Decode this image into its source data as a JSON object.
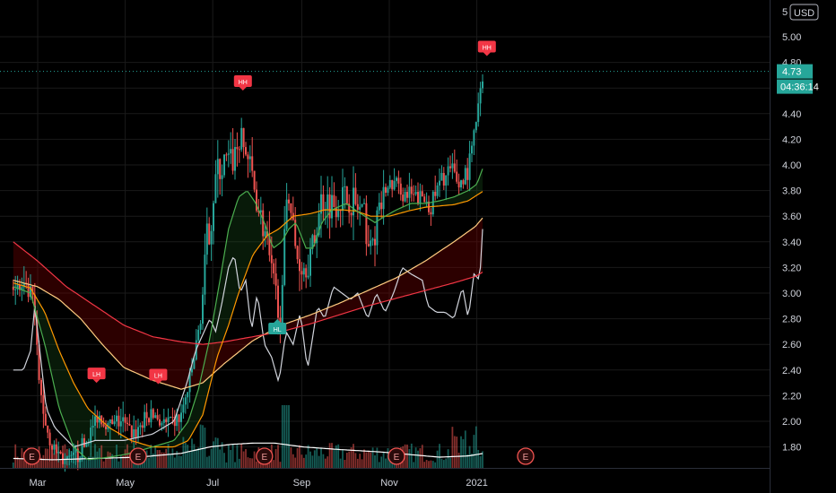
{
  "currency": "USD",
  "colors": {
    "background": "#000000",
    "up": "#26a69a",
    "down": "#ef5350",
    "ma_fast": "#4caf50",
    "ma_mid": "#ff9800",
    "ma_slow": "#f23645",
    "oscillator": "#d1d4dc",
    "volume_ma": "#ffffff"
  },
  "price_badge": {
    "value": "4.73",
    "countdown": "04:36:14"
  },
  "chart_data": {
    "type": "candlestick",
    "ylim": [
      1.62,
      5.13
    ],
    "y_ticks": [
      "1.80",
      "2.00",
      "2.20",
      "2.40",
      "2.60",
      "2.80",
      "3.00",
      "3.20",
      "3.40",
      "3.60",
      "3.80",
      "4.00",
      "4.20",
      "4.40",
      "4.60",
      "4.80",
      "5.00"
    ],
    "y_top_clipped_label": "5",
    "x_ticks": [
      {
        "label": "Mar",
        "day": 0
      },
      {
        "label": "May",
        "day": 61
      },
      {
        "label": "Jul",
        "day": 122
      },
      {
        "label": "Sep",
        "day": 184
      },
      {
        "label": "Nov",
        "day": 245
      },
      {
        "label": "2021",
        "day": 306
      }
    ],
    "x_range_days": [
      -17,
      330
    ],
    "last_price": 4.73,
    "price_anchors": [
      [
        -17,
        3.05
      ],
      [
        -8,
        3.0
      ],
      [
        -3,
        2.95
      ],
      [
        1,
        2.3
      ],
      [
        6,
        1.95
      ],
      [
        12,
        1.78
      ],
      [
        20,
        1.68
      ],
      [
        28,
        1.72
      ],
      [
        35,
        1.85
      ],
      [
        42,
        2.05
      ],
      [
        50,
        1.95
      ],
      [
        58,
        2.0
      ],
      [
        66,
        1.9
      ],
      [
        74,
        2.0
      ],
      [
        82,
        2.05
      ],
      [
        90,
        1.95
      ],
      [
        100,
        2.05
      ],
      [
        106,
        2.3
      ],
      [
        110,
        2.55
      ],
      [
        114,
        2.85
      ],
      [
        118,
        3.4
      ],
      [
        121,
        3.6
      ],
      [
        124,
        3.9
      ],
      [
        130,
        4.0
      ],
      [
        136,
        4.05
      ],
      [
        141,
        4.2
      ],
      [
        147,
        4.05
      ],
      [
        153,
        3.7
      ],
      [
        158,
        3.5
      ],
      [
        163,
        3.1
      ],
      [
        170,
        2.85
      ],
      [
        174,
        3.9
      ],
      [
        180,
        3.3
      ],
      [
        186,
        3.2
      ],
      [
        192,
        3.35
      ],
      [
        198,
        3.75
      ],
      [
        205,
        3.7
      ],
      [
        212,
        3.75
      ],
      [
        220,
        3.7
      ],
      [
        227,
        3.6
      ],
      [
        232,
        3.3
      ],
      [
        236,
        3.55
      ],
      [
        242,
        3.8
      ],
      [
        249,
        3.85
      ],
      [
        257,
        3.75
      ],
      [
        266,
        3.75
      ],
      [
        274,
        3.7
      ],
      [
        282,
        3.9
      ],
      [
        288,
        3.95
      ],
      [
        294,
        3.85
      ],
      [
        300,
        3.95
      ],
      [
        305,
        4.3
      ],
      [
        311,
        4.73
      ]
    ],
    "oscillator_anchors": [
      [
        -17,
        2.4
      ],
      [
        -10,
        2.4
      ],
      [
        -5,
        2.55
      ],
      [
        -2,
        2.9
      ],
      [
        2,
        2.5
      ],
      [
        6,
        2.1
      ],
      [
        12,
        1.95
      ],
      [
        25,
        1.8
      ],
      [
        40,
        1.85
      ],
      [
        60,
        1.85
      ],
      [
        80,
        1.9
      ],
      [
        95,
        2.0
      ],
      [
        104,
        2.3
      ],
      [
        110,
        2.55
      ],
      [
        116,
        2.7
      ],
      [
        120,
        2.8
      ],
      [
        124,
        2.7
      ],
      [
        128,
        2.9
      ],
      [
        133,
        3.2
      ],
      [
        137,
        3.3
      ],
      [
        141,
        3.0
      ],
      [
        145,
        3.1
      ],
      [
        149,
        2.7
      ],
      [
        153,
        3.0
      ],
      [
        158,
        2.6
      ],
      [
        163,
        2.5
      ],
      [
        168,
        2.3
      ],
      [
        173,
        2.7
      ],
      [
        178,
        2.6
      ],
      [
        183,
        2.85
      ],
      [
        188,
        2.4
      ],
      [
        195,
        2.9
      ],
      [
        200,
        2.8
      ],
      [
        206,
        3.05
      ],
      [
        212,
        3.0
      ],
      [
        218,
        2.95
      ],
      [
        223,
        3.0
      ],
      [
        230,
        2.8
      ],
      [
        236,
        3.0
      ],
      [
        242,
        2.85
      ],
      [
        248,
        3.0
      ],
      [
        254,
        3.2
      ],
      [
        260,
        3.15
      ],
      [
        268,
        3.1
      ],
      [
        272,
        2.9
      ],
      [
        278,
        2.85
      ],
      [
        284,
        2.85
      ],
      [
        290,
        2.8
      ],
      [
        296,
        3.05
      ],
      [
        300,
        2.8
      ],
      [
        304,
        3.15
      ],
      [
        308,
        3.1
      ],
      [
        311,
        3.7
      ]
    ],
    "series": [
      {
        "name": "",
        "kind": "ma_fast",
        "anchors": [
          [
            -17,
            3.05
          ],
          [
            -5,
            3.0
          ],
          [
            5,
            2.6
          ],
          [
            15,
            2.1
          ],
          [
            25,
            1.8
          ],
          [
            35,
            1.7
          ],
          [
            50,
            1.72
          ],
          [
            65,
            1.75
          ],
          [
            80,
            1.8
          ],
          [
            95,
            1.85
          ],
          [
            105,
            2.0
          ],
          [
            112,
            2.25
          ],
          [
            120,
            2.65
          ],
          [
            127,
            3.1
          ],
          [
            133,
            3.5
          ],
          [
            140,
            3.75
          ],
          [
            146,
            3.8
          ],
          [
            152,
            3.7
          ],
          [
            158,
            3.55
          ],
          [
            164,
            3.35
          ],
          [
            170,
            3.4
          ],
          [
            175,
            3.5
          ],
          [
            180,
            3.55
          ],
          [
            187,
            3.35
          ],
          [
            192,
            3.35
          ],
          [
            198,
            3.55
          ],
          [
            205,
            3.65
          ],
          [
            215,
            3.7
          ],
          [
            225,
            3.62
          ],
          [
            235,
            3.55
          ],
          [
            242,
            3.6
          ],
          [
            250,
            3.65
          ],
          [
            260,
            3.7
          ],
          [
            270,
            3.7
          ],
          [
            280,
            3.72
          ],
          [
            290,
            3.75
          ],
          [
            300,
            3.8
          ],
          [
            306,
            3.85
          ],
          [
            311,
            4.0
          ]
        ]
      },
      {
        "name": "",
        "kind": "ma_mid",
        "anchors": [
          [
            -17,
            3.08
          ],
          [
            -5,
            3.04
          ],
          [
            5,
            2.85
          ],
          [
            15,
            2.55
          ],
          [
            25,
            2.3
          ],
          [
            35,
            2.1
          ],
          [
            50,
            1.95
          ],
          [
            65,
            1.85
          ],
          [
            80,
            1.8
          ],
          [
            95,
            1.8
          ],
          [
            105,
            1.85
          ],
          [
            115,
            2.05
          ],
          [
            125,
            2.5
          ],
          [
            133,
            2.75
          ],
          [
            140,
            3.0
          ],
          [
            150,
            3.3
          ],
          [
            160,
            3.45
          ],
          [
            168,
            3.5
          ],
          [
            178,
            3.6
          ],
          [
            190,
            3.62
          ],
          [
            200,
            3.65
          ],
          [
            212,
            3.65
          ],
          [
            222,
            3.64
          ],
          [
            232,
            3.6
          ],
          [
            245,
            3.6
          ],
          [
            258,
            3.64
          ],
          [
            270,
            3.67
          ],
          [
            280,
            3.68
          ],
          [
            290,
            3.69
          ],
          [
            300,
            3.72
          ],
          [
            311,
            3.8
          ]
        ]
      },
      {
        "name": "",
        "kind": "ma_slow",
        "anchors": [
          [
            -17,
            3.4
          ],
          [
            0,
            3.25
          ],
          [
            20,
            3.05
          ],
          [
            40,
            2.9
          ],
          [
            60,
            2.75
          ],
          [
            80,
            2.66
          ],
          [
            100,
            2.62
          ],
          [
            115,
            2.6
          ],
          [
            130,
            2.62
          ],
          [
            150,
            2.66
          ],
          [
            170,
            2.7
          ],
          [
            190,
            2.76
          ],
          [
            210,
            2.83
          ],
          [
            230,
            2.9
          ],
          [
            250,
            2.96
          ],
          [
            270,
            3.02
          ],
          [
            290,
            3.08
          ],
          [
            305,
            3.13
          ],
          [
            311,
            3.17
          ]
        ]
      },
      {
        "name": "",
        "kind": "ma_long",
        "anchors": [
          [
            -17,
            3.1
          ],
          [
            0,
            3.05
          ],
          [
            15,
            2.95
          ],
          [
            30,
            2.8
          ],
          [
            45,
            2.6
          ],
          [
            60,
            2.42
          ],
          [
            80,
            2.32
          ],
          [
            100,
            2.25
          ],
          [
            115,
            2.3
          ],
          [
            130,
            2.45
          ],
          [
            150,
            2.63
          ],
          [
            170,
            2.75
          ],
          [
            190,
            2.83
          ],
          [
            210,
            2.92
          ],
          [
            230,
            3.02
          ],
          [
            250,
            3.12
          ],
          [
            270,
            3.25
          ],
          [
            290,
            3.4
          ],
          [
            305,
            3.52
          ],
          [
            311,
            3.6
          ]
        ]
      }
    ],
    "volume_ma_anchors": [
      [
        -17,
        1.71
      ],
      [
        10,
        1.7
      ],
      [
        40,
        1.71
      ],
      [
        70,
        1.72
      ],
      [
        100,
        1.75
      ],
      [
        120,
        1.8
      ],
      [
        135,
        1.82
      ],
      [
        150,
        1.83
      ],
      [
        165,
        1.83
      ],
      [
        185,
        1.8
      ],
      [
        210,
        1.78
      ],
      [
        240,
        1.76
      ],
      [
        260,
        1.74
      ],
      [
        280,
        1.72
      ],
      [
        300,
        1.73
      ],
      [
        311,
        1.75
      ]
    ],
    "annotations": [
      {
        "label": "HH",
        "day": 143,
        "price": 4.65,
        "color": "#f23645",
        "arrow": "down"
      },
      {
        "label": "HH",
        "day": 313,
        "price": 4.92,
        "color": "#f23645",
        "arrow": "down"
      },
      {
        "label": "LH",
        "day": 41,
        "price": 2.37,
        "color": "#f23645",
        "arrow": "down"
      },
      {
        "label": "LH",
        "day": 84,
        "price": 2.36,
        "color": "#f23645",
        "arrow": "down"
      },
      {
        "label": "HL",
        "day": 167,
        "price": 2.72,
        "color": "#26a69a",
        "arrow": "up"
      }
    ],
    "events": [
      {
        "label": "E",
        "day": -4
      },
      {
        "label": "E",
        "day": 70
      },
      {
        "label": "E",
        "day": 158
      },
      {
        "label": "E",
        "day": 250
      },
      {
        "label": "E",
        "day": 340
      }
    ]
  }
}
